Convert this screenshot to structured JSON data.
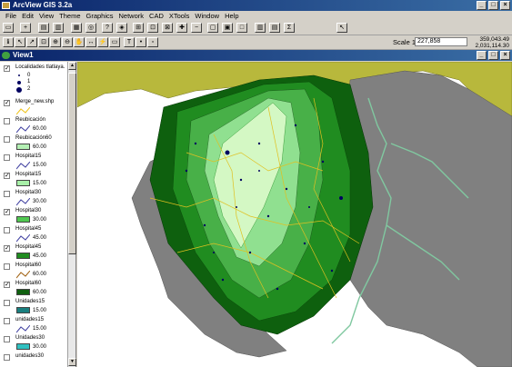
{
  "app": {
    "title": "ArcView GIS 3.2a"
  },
  "window_controls": {
    "minimize": "_",
    "maximize": "□",
    "close": "×"
  },
  "menu": [
    "File",
    "Edit",
    "View",
    "Theme",
    "Graphics",
    "Network",
    "CAD",
    "XTools",
    "Window",
    "Help"
  ],
  "toolbar": {
    "scale_label": "Scale 1:",
    "scale_value": "227,858",
    "coord_x": "359,043.49",
    "coord_y": "2,031,114.30"
  },
  "view": {
    "title": "View1"
  },
  "legend": [
    {
      "name": "Localidades tlatlaya.",
      "checked": true,
      "symbols": [
        "0",
        "1",
        "2"
      ]
    },
    {
      "name": "Merge_new.shp",
      "checked": true,
      "line_color": "#f0c419"
    },
    {
      "name": "Reubicación",
      "checked": false,
      "line_color": "#4040a0",
      "value": "60.00"
    },
    {
      "name": "Reubicación60",
      "checked": false,
      "fill": "#b4f0b4",
      "value": "60.00"
    },
    {
      "name": "Hospital15",
      "checked": false,
      "line_color": "#4040a0",
      "value": "15.00"
    },
    {
      "name": "Hospital15",
      "checked": true,
      "fill": "#a8f0a8",
      "value": "15.00"
    },
    {
      "name": "Hospital30",
      "checked": false,
      "line_color": "#4040a0",
      "value": "30.00"
    },
    {
      "name": "Hospital30",
      "checked": true,
      "fill": "#50c850",
      "value": "30.00"
    },
    {
      "name": "Hospital45",
      "checked": false,
      "line_color": "#4040a0",
      "value": "45.00"
    },
    {
      "name": "Hospital45",
      "checked": true,
      "fill": "#208c20",
      "value": "45.00"
    },
    {
      "name": "Hospital60",
      "checked": false,
      "line_color": "#a06010",
      "value": "60.00"
    },
    {
      "name": "Hospital60",
      "checked": true,
      "fill": "#106010",
      "value": "60.00"
    },
    {
      "name": "Unidades15",
      "checked": false,
      "fill": "#1a8080",
      "value": "15.00"
    },
    {
      "name": "unidades15",
      "checked": false,
      "line_color": "#4040a0",
      "value": "15.00"
    },
    {
      "name": "Unidades30",
      "checked": false,
      "fill": "#30c0c0",
      "value": "30.00"
    },
    {
      "name": "unidades30",
      "checked": false
    }
  ],
  "colors": {
    "titlebar": "#0a246a",
    "map_bg": "#ffffff",
    "olive_region": "#b8b83c",
    "gray_region": "#808080",
    "zone_lightest": "#d4f8c4",
    "zone_light": "#90e090",
    "zone_mid": "#48b048",
    "zone_dark": "#208c20",
    "zone_darkest": "#0e600e",
    "roads": "#e0c020",
    "rivers": "#80c8a0",
    "points": "#000060"
  },
  "icons": [
    "save-icon",
    "print-icon",
    "zoom-in-icon",
    "zoom-out-icon",
    "pan-icon",
    "identify-icon",
    "select-icon",
    "help-icon"
  ]
}
